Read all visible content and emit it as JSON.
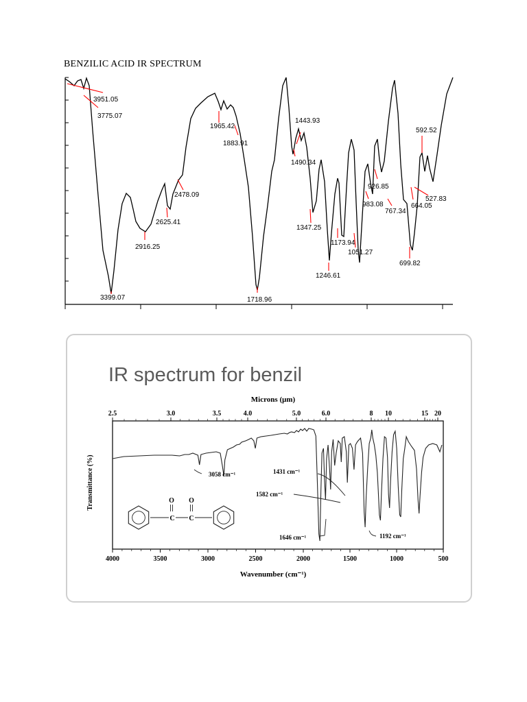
{
  "page_title": "BENZILIC ACID IR SPECTRUM",
  "chart_data": [
    {
      "type": "line",
      "title": "BENZILIC ACID IR SPECTRUM",
      "xlabel": "",
      "ylabel": "",
      "grid": false,
      "line_color": "#000000",
      "annotation_color": "#ff0000",
      "annotations": [
        {
          "label": "3951.05"
        },
        {
          "label": "3775.07"
        },
        {
          "label": "1965.42"
        },
        {
          "label": "1883.91"
        },
        {
          "label": "1443.93"
        },
        {
          "label": "1490.34"
        },
        {
          "label": "592.52"
        },
        {
          "label": "926.85"
        },
        {
          "label": "527.83"
        },
        {
          "label": "983.08"
        },
        {
          "label": "767.34"
        },
        {
          "label": "664.05"
        },
        {
          "label": "2478.09"
        },
        {
          "label": "2625.41"
        },
        {
          "label": "2916.25"
        },
        {
          "label": "1347.25"
        },
        {
          "label": "1173.94"
        },
        {
          "label": "1051.27"
        },
        {
          "label": "699.82"
        },
        {
          "label": "1246.61"
        },
        {
          "label": "3399.07"
        },
        {
          "label": "1718.96"
        }
      ]
    },
    {
      "type": "line",
      "title": "IR spectrum for benzil",
      "xlabel": "Wavenumber (cm⁻¹)",
      "ylabel": "Transmittance (%)",
      "top_axis_label": "Microns (μm)",
      "x_tick_labels": [
        "4000",
        "3500",
        "3000",
        "2500",
        "2000",
        "1500",
        "1000",
        "500"
      ],
      "top_tick_labels": [
        "2.5",
        "3.0",
        "3.5",
        "4.0",
        "5.0",
        "6.0",
        "8",
        "10",
        "15",
        "20"
      ],
      "structure_labels": [
        "O",
        "O",
        "C",
        "C"
      ],
      "annotations": [
        {
          "label": "3058 cm⁻¹"
        },
        {
          "label": "1431 cm⁻¹"
        },
        {
          "label": "1582 cm⁻¹"
        },
        {
          "label": "1646 cm⁻¹"
        },
        {
          "label": "1192 cm⁻¹"
        }
      ]
    }
  ]
}
